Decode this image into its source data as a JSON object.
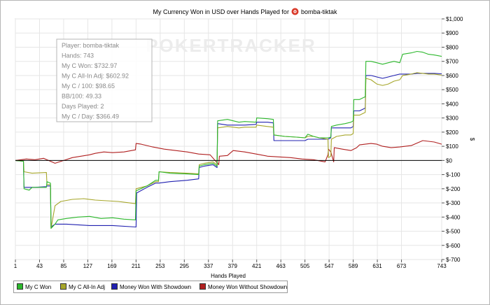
{
  "chart_data": {
    "type": "line",
    "title": "My Currency Won in USD over Hands Played for",
    "player_name": "bomba-tiktak",
    "xlabel": "Hands Played",
    "ylabel": "$",
    "xlim": [
      1,
      743
    ],
    "ylim": [
      -700,
      1000
    ],
    "x_ticks": [
      1,
      43,
      85,
      127,
      169,
      211,
      253,
      295,
      337,
      379,
      421,
      463,
      505,
      547,
      589,
      631,
      673,
      743
    ],
    "y_ticks": [
      {
        "v": 1000,
        "label": "$1,000"
      },
      {
        "v": 900,
        "label": "$900"
      },
      {
        "v": 800,
        "label": "$800"
      },
      {
        "v": 700,
        "label": "$700"
      },
      {
        "v": 600,
        "label": "$600"
      },
      {
        "v": 500,
        "label": "$500"
      },
      {
        "v": 400,
        "label": "$400"
      },
      {
        "v": 300,
        "label": "$300"
      },
      {
        "v": 200,
        "label": "$200"
      },
      {
        "v": 100,
        "label": "$100"
      },
      {
        "v": 0,
        "label": "$0"
      },
      {
        "v": -100,
        "label": "$-100"
      },
      {
        "v": -200,
        "label": "$-200"
      },
      {
        "v": -300,
        "label": "$-300"
      },
      {
        "v": -400,
        "label": "$-400"
      },
      {
        "v": -500,
        "label": "$-500"
      },
      {
        "v": -600,
        "label": "$-600"
      },
      {
        "v": -700,
        "label": "$-700"
      }
    ],
    "watermark": "POKERTRACKER",
    "grid": true,
    "info_box": [
      "Player: bomba-tiktak",
      "Hands: 743",
      "My C Won: $732.97",
      "My C All-In Adj: $602.92",
      "My C / 100: $98.65",
      "BB/100: 49.33",
      "Days Played: 2",
      "My C / Day: $366.49"
    ],
    "series": [
      {
        "name": "My C Won",
        "color": "#2db82d",
        "points": [
          [
            1,
            0
          ],
          [
            15,
            -5
          ],
          [
            16,
            -200
          ],
          [
            25,
            -210
          ],
          [
            30,
            -190
          ],
          [
            55,
            -190
          ],
          [
            56,
            -150
          ],
          [
            62,
            -160
          ],
          [
            63,
            -480
          ],
          [
            70,
            -450
          ],
          [
            75,
            -420
          ],
          [
            90,
            -410
          ],
          [
            110,
            -400
          ],
          [
            130,
            -395
          ],
          [
            150,
            -410
          ],
          [
            170,
            -405
          ],
          [
            190,
            -415
          ],
          [
            210,
            -420
          ],
          [
            211,
            -215
          ],
          [
            230,
            -180
          ],
          [
            245,
            -140
          ],
          [
            250,
            -140
          ],
          [
            251,
            -80
          ],
          [
            270,
            -90
          ],
          [
            300,
            -95
          ],
          [
            320,
            -100
          ],
          [
            321,
            -40
          ],
          [
            330,
            -30
          ],
          [
            345,
            -20
          ],
          [
            352,
            -40
          ],
          [
            353,
            280
          ],
          [
            370,
            290
          ],
          [
            390,
            270
          ],
          [
            400,
            275
          ],
          [
            420,
            270
          ],
          [
            421,
            300
          ],
          [
            440,
            295
          ],
          [
            450,
            290
          ],
          [
            451,
            180
          ],
          [
            470,
            170
          ],
          [
            490,
            165
          ],
          [
            505,
            160
          ],
          [
            510,
            185
          ],
          [
            520,
            170
          ],
          [
            530,
            160
          ],
          [
            545,
            160
          ],
          [
            550,
            165
          ],
          [
            551,
            240
          ],
          [
            560,
            250
          ],
          [
            575,
            260
          ],
          [
            585,
            270
          ],
          [
            589,
            280
          ],
          [
            590,
            430
          ],
          [
            600,
            430
          ],
          [
            605,
            440
          ],
          [
            610,
            450
          ],
          [
            611,
            700
          ],
          [
            620,
            700
          ],
          [
            630,
            690
          ],
          [
            640,
            680
          ],
          [
            650,
            690
          ],
          [
            660,
            700
          ],
          [
            670,
            690
          ],
          [
            675,
            750
          ],
          [
            690,
            760
          ],
          [
            700,
            770
          ],
          [
            710,
            765
          ],
          [
            720,
            750
          ],
          [
            730,
            745
          ],
          [
            743,
            735
          ]
        ]
      },
      {
        "name": "My C All-In Adj",
        "color": "#a6a62a",
        "points": [
          [
            1,
            0
          ],
          [
            15,
            -5
          ],
          [
            16,
            -80
          ],
          [
            30,
            -90
          ],
          [
            55,
            -85
          ],
          [
            56,
            -170
          ],
          [
            62,
            -170
          ],
          [
            63,
            -480
          ],
          [
            70,
            -320
          ],
          [
            80,
            -290
          ],
          [
            100,
            -275
          ],
          [
            120,
            -270
          ],
          [
            140,
            -280
          ],
          [
            160,
            -285
          ],
          [
            180,
            -290
          ],
          [
            200,
            -300
          ],
          [
            210,
            -305
          ],
          [
            211,
            -200
          ],
          [
            230,
            -180
          ],
          [
            245,
            -150
          ],
          [
            250,
            -150
          ],
          [
            251,
            -80
          ],
          [
            270,
            -85
          ],
          [
            300,
            -90
          ],
          [
            320,
            -95
          ],
          [
            321,
            -30
          ],
          [
            330,
            -20
          ],
          [
            345,
            -10
          ],
          [
            352,
            -30
          ],
          [
            353,
            230
          ],
          [
            370,
            240
          ],
          [
            390,
            230
          ],
          [
            400,
            235
          ],
          [
            420,
            235
          ],
          [
            421,
            250
          ],
          [
            440,
            240
          ],
          [
            450,
            235
          ],
          [
            451,
            180
          ],
          [
            470,
            170
          ],
          [
            490,
            165
          ],
          [
            505,
            160
          ],
          [
            510,
            170
          ],
          [
            520,
            170
          ],
          [
            530,
            160
          ],
          [
            545,
            150
          ],
          [
            546,
            20
          ],
          [
            550,
            30
          ],
          [
            551,
            150
          ],
          [
            560,
            170
          ],
          [
            575,
            180
          ],
          [
            585,
            180
          ],
          [
            589,
            190
          ],
          [
            590,
            320
          ],
          [
            600,
            320
          ],
          [
            605,
            330
          ],
          [
            610,
            340
          ],
          [
            611,
            580
          ],
          [
            620,
            570
          ],
          [
            630,
            540
          ],
          [
            640,
            530
          ],
          [
            650,
            540
          ],
          [
            660,
            560
          ],
          [
            670,
            570
          ],
          [
            675,
            600
          ],
          [
            690,
            610
          ],
          [
            700,
            620
          ],
          [
            710,
            615
          ],
          [
            720,
            610
          ],
          [
            730,
            610
          ],
          [
            743,
            603
          ]
        ]
      },
      {
        "name": "Money Won With Showdown",
        "color": "#2020b0",
        "points": [
          [
            1,
            0
          ],
          [
            15,
            -5
          ],
          [
            16,
            -190
          ],
          [
            35,
            -190
          ],
          [
            55,
            -185
          ],
          [
            56,
            -180
          ],
          [
            62,
            -180
          ],
          [
            63,
            -470
          ],
          [
            70,
            -450
          ],
          [
            90,
            -450
          ],
          [
            130,
            -460
          ],
          [
            170,
            -460
          ],
          [
            211,
            -470
          ],
          [
            212,
            -230
          ],
          [
            230,
            -190
          ],
          [
            245,
            -160
          ],
          [
            250,
            -160
          ],
          [
            251,
            -160
          ],
          [
            270,
            -150
          ],
          [
            300,
            -140
          ],
          [
            320,
            -130
          ],
          [
            321,
            -50
          ],
          [
            330,
            -40
          ],
          [
            345,
            -30
          ],
          [
            352,
            -50
          ],
          [
            353,
            260
          ],
          [
            370,
            250
          ],
          [
            400,
            250
          ],
          [
            420,
            255
          ],
          [
            421,
            270
          ],
          [
            440,
            270
          ],
          [
            450,
            265
          ],
          [
            451,
            140
          ],
          [
            470,
            140
          ],
          [
            490,
            140
          ],
          [
            505,
            140
          ],
          [
            510,
            150
          ],
          [
            520,
            150
          ],
          [
            530,
            150
          ],
          [
            545,
            150
          ],
          [
            550,
            160
          ],
          [
            551,
            230
          ],
          [
            560,
            230
          ],
          [
            575,
            230
          ],
          [
            585,
            230
          ],
          [
            589,
            240
          ],
          [
            590,
            350
          ],
          [
            600,
            350
          ],
          [
            605,
            360
          ],
          [
            610,
            370
          ],
          [
            611,
            600
          ],
          [
            620,
            600
          ],
          [
            630,
            590
          ],
          [
            640,
            580
          ],
          [
            650,
            590
          ],
          [
            660,
            600
          ],
          [
            670,
            610
          ],
          [
            675,
            610
          ],
          [
            690,
            610
          ],
          [
            700,
            615
          ],
          [
            710,
            615
          ],
          [
            720,
            615
          ],
          [
            730,
            615
          ],
          [
            743,
            612
          ]
        ]
      },
      {
        "name": "Money Won Without Showdown",
        "color": "#b02020",
        "points": [
          [
            1,
            0
          ],
          [
            20,
            10
          ],
          [
            35,
            5
          ],
          [
            50,
            15
          ],
          [
            70,
            -20
          ],
          [
            85,
            0
          ],
          [
            100,
            20
          ],
          [
            115,
            30
          ],
          [
            130,
            40
          ],
          [
            140,
            50
          ],
          [
            155,
            60
          ],
          [
            170,
            55
          ],
          [
            190,
            60
          ],
          [
            210,
            75
          ],
          [
            211,
            120
          ],
          [
            220,
            115
          ],
          [
            240,
            95
          ],
          [
            260,
            80
          ],
          [
            280,
            70
          ],
          [
            300,
            60
          ],
          [
            320,
            45
          ],
          [
            340,
            40
          ],
          [
            355,
            -30
          ],
          [
            356,
            30
          ],
          [
            370,
            35
          ],
          [
            380,
            70
          ],
          [
            400,
            60
          ],
          [
            420,
            45
          ],
          [
            440,
            30
          ],
          [
            460,
            25
          ],
          [
            480,
            20
          ],
          [
            500,
            10
          ],
          [
            520,
            5
          ],
          [
            540,
            -10
          ],
          [
            545,
            40
          ],
          [
            546,
            80
          ],
          [
            550,
            60
          ],
          [
            555,
            -10
          ],
          [
            556,
            90
          ],
          [
            570,
            80
          ],
          [
            585,
            70
          ],
          [
            595,
            90
          ],
          [
            600,
            110
          ],
          [
            610,
            115
          ],
          [
            620,
            120
          ],
          [
            630,
            115
          ],
          [
            640,
            100
          ],
          [
            655,
            90
          ],
          [
            670,
            95
          ],
          [
            690,
            105
          ],
          [
            710,
            140
          ],
          [
            730,
            130
          ],
          [
            743,
            115
          ]
        ]
      }
    ]
  }
}
